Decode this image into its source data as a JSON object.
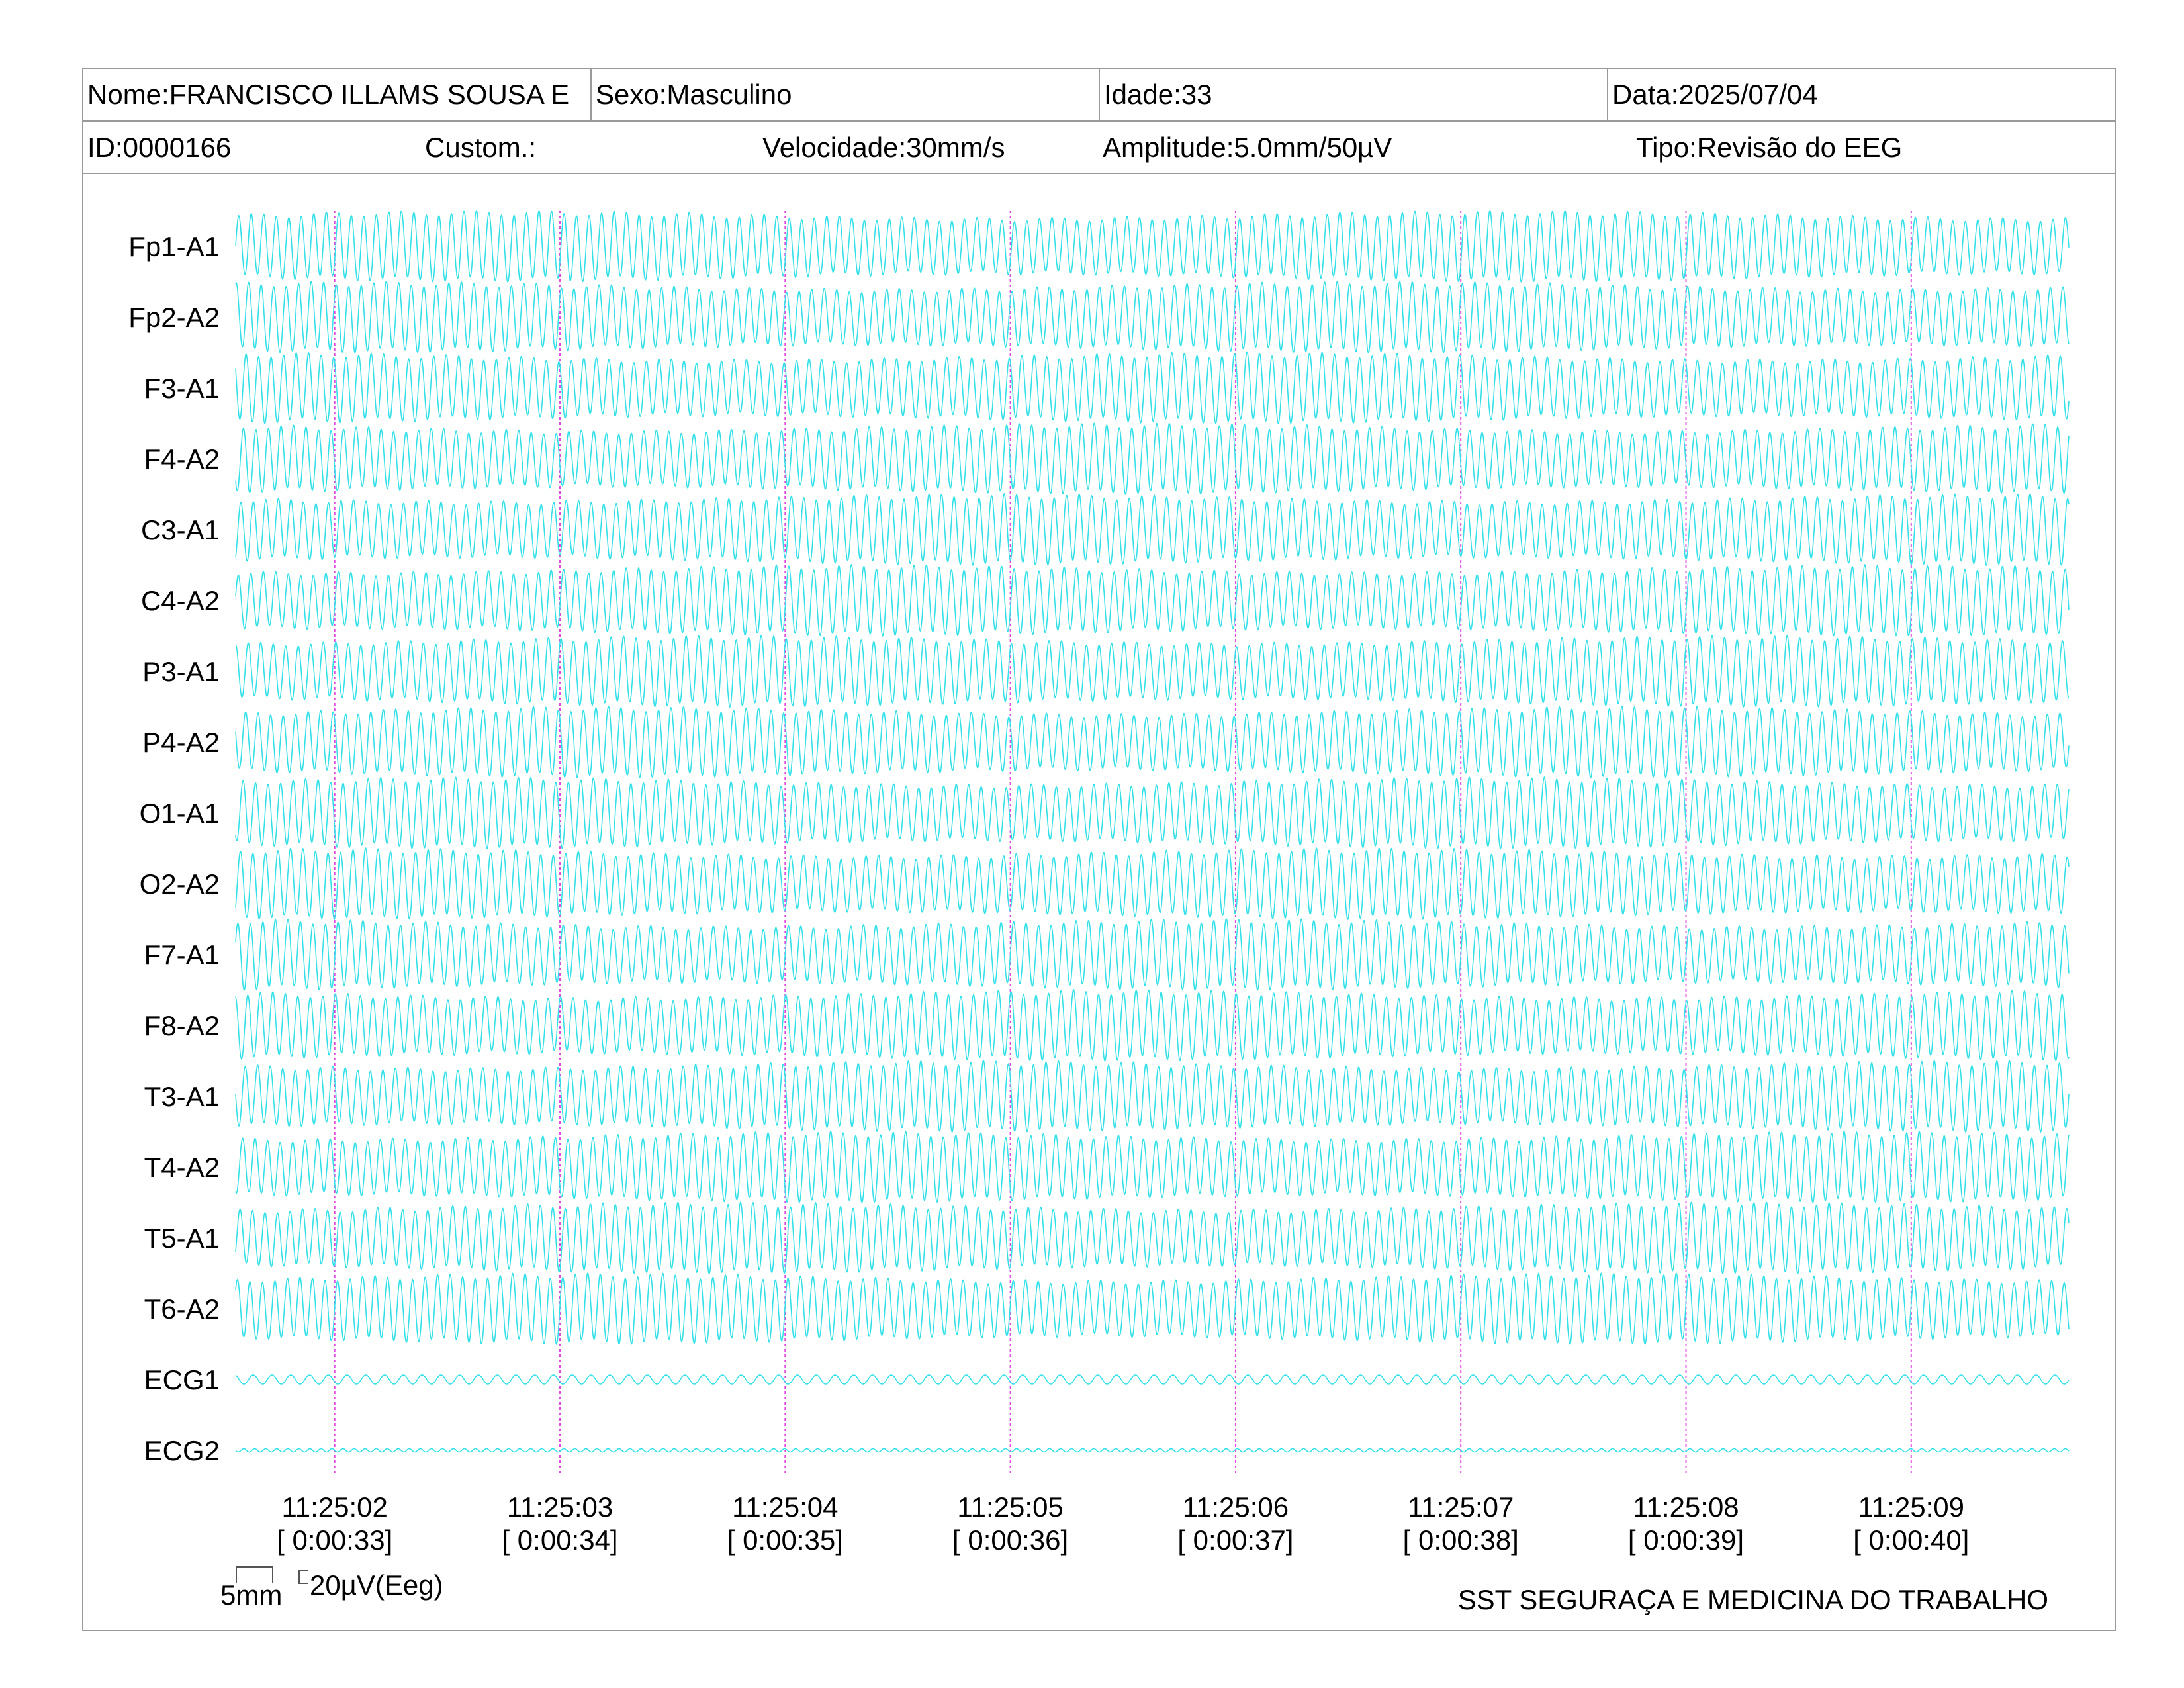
{
  "header": {
    "name": "Nome:FRANCISCO ILLAMS SOUSA E",
    "sex": "Sexo:Masculino",
    "age": "Idade:33",
    "date": "Data:2025/07/04",
    "id": "ID:0000166",
    "custom": "Custom.:",
    "speed": "Velocidade:30mm/s",
    "amplitude": "Amplitude:5.0mm/50µV",
    "type": "Tipo:Revisão do EEG"
  },
  "colors": {
    "trace": "#33e0e8",
    "marker": "#e048e0",
    "border": "#9a9a9a"
  },
  "chart_data": {
    "type": "line",
    "channels": [
      "Fp1-A1",
      "Fp2-A2",
      "F3-A1",
      "F4-A2",
      "C3-A1",
      "C4-A2",
      "P3-A1",
      "P4-A2",
      "O1-A1",
      "O2-A2",
      "F7-A1",
      "F8-A2",
      "T3-A1",
      "T4-A2",
      "T5-A1",
      "T6-A2",
      "ECG1",
      "ECG2"
    ],
    "time_ticks": [
      {
        "clock": "11:25:02",
        "elapsed": "[ 0:00:33]"
      },
      {
        "clock": "11:25:03",
        "elapsed": "[ 0:00:34]"
      },
      {
        "clock": "11:25:04",
        "elapsed": "[ 0:00:35]"
      },
      {
        "clock": "11:25:05",
        "elapsed": "[ 0:00:36]"
      },
      {
        "clock": "11:25:06",
        "elapsed": "[ 0:00:37]"
      },
      {
        "clock": "11:25:07",
        "elapsed": "[ 0:00:38]"
      },
      {
        "clock": "11:25:08",
        "elapsed": "[ 0:00:39]"
      },
      {
        "clock": "11:25:09",
        "elapsed": "[ 0:00:40]"
      }
    ],
    "time_range_s": [
      32.56,
      40.7
    ],
    "eeg_frequency_hz": 18,
    "ecg_frequency_hz": 12,
    "grid": false
  },
  "scale": {
    "time": "5mm",
    "amplitude": "20µV(Eeg)"
  },
  "footer": {
    "company": "SST SEGURAÇA E MEDICINA DO TRABALHO"
  }
}
